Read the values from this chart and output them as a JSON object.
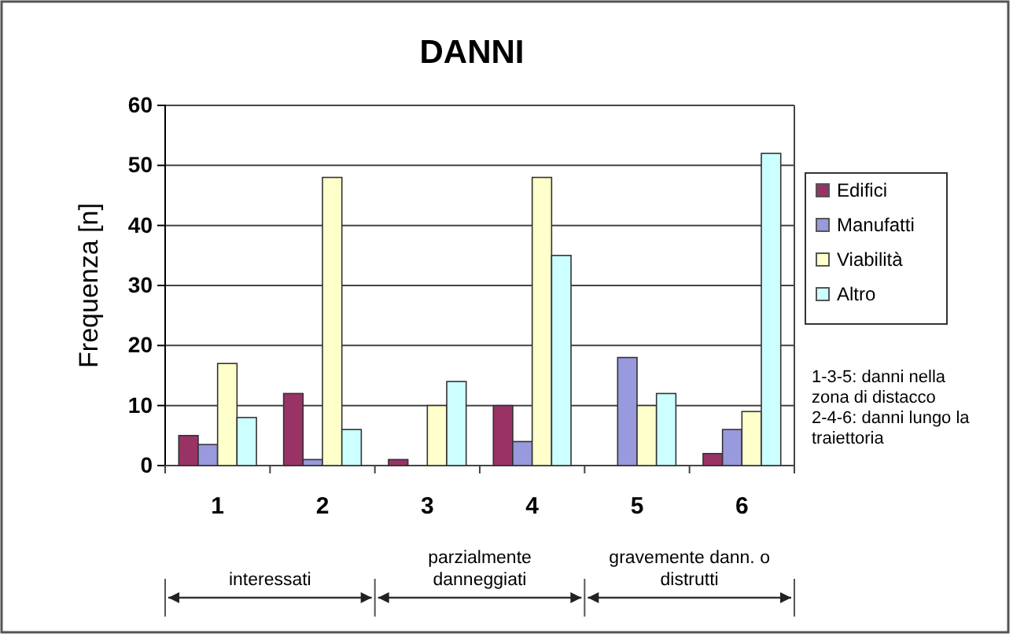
{
  "chart_data": {
    "type": "bar",
    "title": "DANNI",
    "ylabel": "Frequenza [n]",
    "categories": [
      "1",
      "2",
      "3",
      "4",
      "5",
      "6"
    ],
    "series": [
      {
        "name": "Edifici",
        "color": "#993366",
        "values": [
          5,
          12,
          1,
          10,
          0,
          2
        ]
      },
      {
        "name": "Manufatti",
        "color": "#9999dd",
        "values": [
          3.5,
          1,
          0,
          4,
          18,
          6
        ]
      },
      {
        "name": "Viabilità",
        "color": "#ffffcc",
        "values": [
          17,
          48,
          10,
          48,
          10,
          9
        ]
      },
      {
        "name": "Altro",
        "color": "#ccffff",
        "values": [
          8,
          6,
          14,
          35,
          12,
          52
        ]
      }
    ],
    "ylim": [
      0,
      60
    ],
    "yticks": [
      0,
      10,
      20,
      30,
      40,
      50,
      60
    ],
    "grid": "y",
    "legend": "right",
    "annotations": [
      "interessati",
      "parzialmente danneggiati",
      "gravemente dann. o distrutti",
      "1-3-5: danni nella zona di distacco",
      "2-4-6: danni lungo la traiettoria"
    ]
  }
}
